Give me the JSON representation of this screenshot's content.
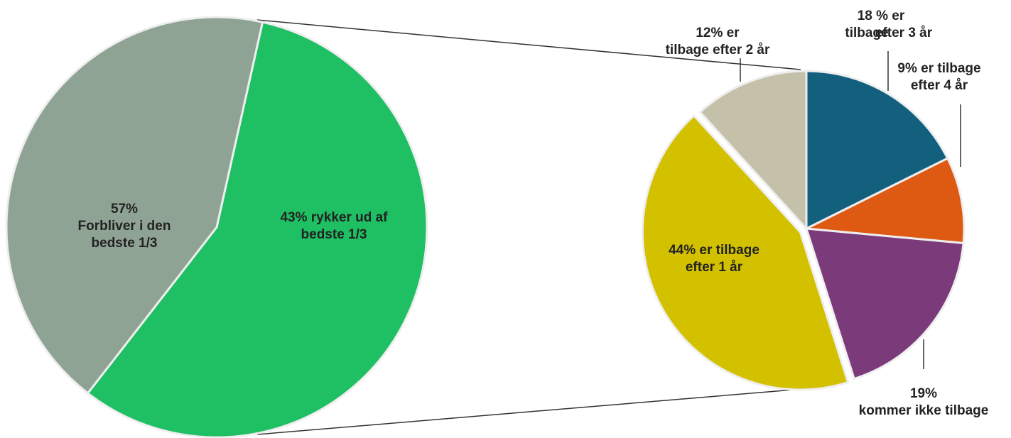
{
  "chart_data": [
    {
      "type": "pie",
      "values": [
        57,
        43
      ],
      "value_labels": [
        [
          "57%",
          "Forbliver i den",
          "bedste 1/3"
        ],
        [
          "43% rykker ud af",
          "bedste 1/3"
        ]
      ],
      "colors": [
        "#1fbf63",
        "#8fa395"
      ]
    },
    {
      "type": "pie",
      "values": [
        18,
        9,
        19,
        44,
        12
      ],
      "value_labels": [
        [
          "18 % er",
          "tilbage",
          "efter 3 år"
        ],
        [
          "9% er tilbage",
          "efter 4 år"
        ],
        [
          "19%",
          "kommer ikke tilbage"
        ],
        [
          "44% er tilbage",
          "efter 1 år"
        ],
        [
          "12% er",
          "tilbage efter 2 år"
        ]
      ],
      "colors": [
        "#13607e",
        "#de5a12",
        "#7b3a7a",
        "#d3c100",
        "#c4c0a9"
      ]
    }
  ]
}
